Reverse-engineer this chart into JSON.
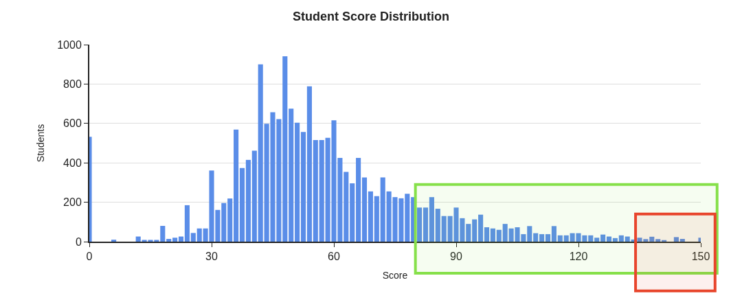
{
  "chart_data": {
    "type": "bar",
    "title": "Student Score Distribution",
    "xlabel": "Score",
    "ylabel": "Students",
    "x": [
      0,
      1.5,
      3,
      4.5,
      6,
      7.5,
      9,
      10.5,
      12,
      13.5,
      15,
      16.5,
      18,
      19.5,
      21,
      22.5,
      24,
      25.5,
      27,
      28.5,
      30,
      31.5,
      33,
      34.5,
      36,
      37.5,
      39,
      40.5,
      42,
      43.5,
      45,
      46.5,
      48,
      49.5,
      51,
      52.5,
      54,
      55.5,
      57,
      58.5,
      60,
      61.5,
      63,
      64.5,
      66,
      67.5,
      69,
      70.5,
      72,
      73.5,
      75,
      76.5,
      78,
      79.5,
      81,
      82.5,
      84,
      85.5,
      87,
      88.5,
      90,
      91.5,
      93,
      94.5,
      96,
      97.5,
      99,
      100.5,
      102,
      103.5,
      105,
      106.5,
      108,
      109.5,
      111,
      112.5,
      114,
      115.5,
      117,
      118.5,
      120,
      121.5,
      123,
      124.5,
      126,
      127.5,
      129,
      130.5,
      132,
      133.5,
      135,
      136.5,
      138,
      139.5,
      141,
      142.5,
      144,
      145.5,
      147,
      148.5,
      150
    ],
    "values": [
      532,
      0,
      0,
      0,
      10,
      0,
      0,
      0,
      26,
      9,
      9,
      9,
      80,
      14,
      20,
      26,
      185,
      44,
      67,
      67,
      361,
      161,
      196,
      219,
      569,
      374,
      415,
      462,
      900,
      598,
      657,
      622,
      941,
      675,
      604,
      557,
      788,
      516,
      516,
      527,
      616,
      425,
      354,
      296,
      425,
      326,
      255,
      231,
      326,
      255,
      226,
      220,
      243,
      226,
      173,
      173,
      226,
      167,
      130,
      130,
      173,
      119,
      90,
      113,
      137,
      73,
      67,
      60,
      90,
      67,
      73,
      38,
      79,
      43,
      38,
      38,
      79,
      32,
      32,
      43,
      43,
      32,
      32,
      20,
      36,
      26,
      18,
      32,
      26,
      11,
      20,
      13,
      25,
      13,
      8,
      0,
      23,
      14,
      0,
      0,
      20
    ],
    "color": "#5a8de8",
    "xlim": [
      0,
      150
    ],
    "xticks": [
      0,
      30,
      60,
      90,
      120,
      150
    ],
    "ylim": [
      0,
      1000
    ],
    "yticks": [
      0,
      200,
      400,
      600,
      800,
      1000
    ],
    "grid": "y",
    "bands": [
      {
        "axis": "x",
        "from": 80,
        "to": 154,
        "color": "#86e04a"
      },
      {
        "axis": "x",
        "from": 134,
        "to": 153.5,
        "color": "#e8452c"
      }
    ]
  }
}
